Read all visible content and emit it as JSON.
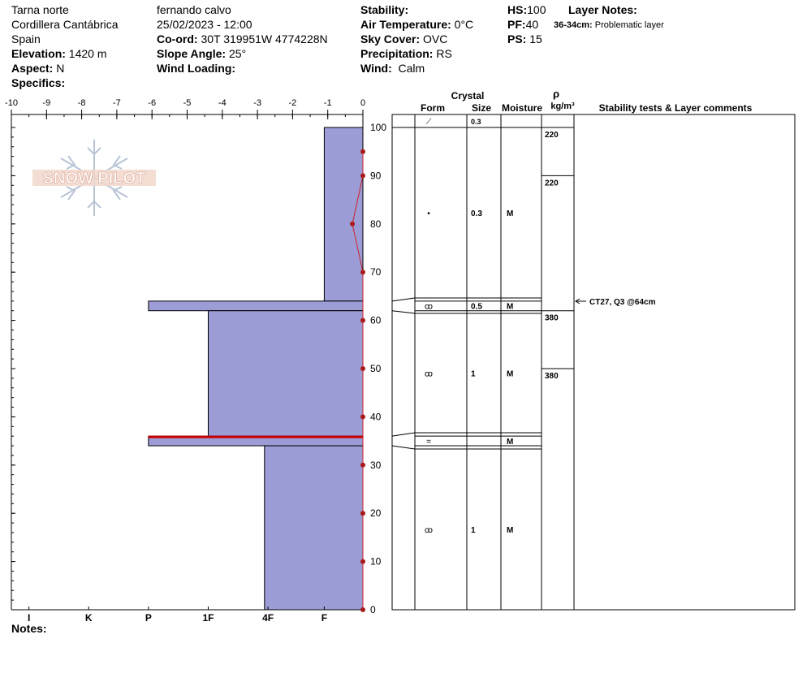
{
  "header": {
    "location": "Tarna norte",
    "range": "Cordillera Cantábrica",
    "country": "Spain",
    "elevation_label": "Elevation:",
    "elevation_value": "1420 m",
    "aspect_label": "Aspect:",
    "aspect_value": "N",
    "specifics_label": "Specifics:",
    "observer": "fernando calvo",
    "datetime": "25/02/2023 - 12:00",
    "coord_label": "Co-ord:",
    "coord_value": "30T 319951W 4774228N",
    "slope_label": "Slope Angle:",
    "slope_value": "25°",
    "wind_loading_label": "Wind Loading:",
    "stability_label": "Stability:",
    "air_temp_label": "Air Temperature:",
    "air_temp_value": "0°C",
    "sky_label": "Sky Cover:",
    "sky_value": "OVC",
    "precip_label": "Precipitation:",
    "precip_value": "RS",
    "wind_label": "Wind:",
    "wind_value": "Calm",
    "hs_label": "HS:",
    "hs_value": "100",
    "pf_label": "PF:",
    "pf_value": "40",
    "ps_label": "PS:",
    "ps_value": "15",
    "layer_notes_label": "Layer Notes:",
    "layer_note_range": "36-34cm:",
    "layer_note_text": "Problematic layer"
  },
  "notes_label": "Notes:",
  "logo_text": "SNOW PILOT",
  "columns": {
    "crystal": "Crystal",
    "form": "Form",
    "size": "Size",
    "moisture": "Moisture",
    "rho": "ρ",
    "density_unit": "kg/m³",
    "stability": "Stability tests & Layer comments"
  },
  "colors": {
    "hardness_fill": "#9c9cd6",
    "temp_line": "#cc2222",
    "temp_point": "#aa1a1a",
    "problem_line": "#cc0000"
  },
  "chart_data": {
    "type": "snow-profile",
    "temp_axis": {
      "ticks": [
        -10,
        -9,
        -8,
        -7,
        -6,
        -5,
        -4,
        -3,
        -2,
        -1,
        0
      ],
      "range": [
        -10,
        0
      ]
    },
    "height_axis": {
      "ticks": [
        0,
        10,
        20,
        30,
        40,
        50,
        60,
        70,
        80,
        90,
        100
      ],
      "range": [
        0,
        100
      ]
    },
    "hardness_axis": {
      "labels": [
        "I",
        "K",
        "P",
        "1F",
        "4F",
        "F"
      ],
      "label_temps": [
        -9.5,
        -7.8,
        -6.1,
        -4.4,
        -2.7,
        -1.1
      ]
    },
    "temperature_profile": [
      {
        "h": 0,
        "t": 0
      },
      {
        "h": 10,
        "t": 0
      },
      {
        "h": 20,
        "t": 0
      },
      {
        "h": 30,
        "t": 0
      },
      {
        "h": 40,
        "t": 0
      },
      {
        "h": 50,
        "t": 0
      },
      {
        "h": 60,
        "t": 0
      },
      {
        "h": 70,
        "t": 0
      },
      {
        "h": 80,
        "t": -0.3
      },
      {
        "h": 90,
        "t": 0
      },
      {
        "h": 95,
        "t": 0
      }
    ],
    "hardness_layers": [
      {
        "top": 100,
        "bottom": 64,
        "temp_extent": -1.1
      },
      {
        "top": 64,
        "bottom": 62,
        "temp_extent": -6.1
      },
      {
        "top": 62,
        "bottom": 36,
        "temp_extent": -4.4
      },
      {
        "top": 36,
        "bottom": 34,
        "temp_extent": -6.1
      },
      {
        "top": 34,
        "bottom": 0,
        "temp_extent": -2.8
      }
    ],
    "problem_layer": {
      "top": 36,
      "bottom": 35.5
    },
    "layer_table": [
      {
        "top": 100,
        "bottom": 64,
        "form_glyph": "•",
        "size": "0.3",
        "moisture": "M"
      },
      {
        "top": 64,
        "bottom": 62,
        "form_glyph": "ꝏ",
        "size": "0.5",
        "moisture": "M"
      },
      {
        "top": 62,
        "bottom": 36,
        "form_glyph": "ꝏ",
        "size": "1",
        "moisture": "M"
      },
      {
        "top": 36,
        "bottom": 34,
        "form_glyph": "=",
        "size": "",
        "moisture": "M"
      },
      {
        "top": 34,
        "bottom": 0,
        "form_glyph": "ꝏ",
        "size": "1",
        "moisture": "M"
      }
    ],
    "surface_row": {
      "form_glyph": "⟋",
      "size": "0.3"
    },
    "densities": [
      {
        "top": 100,
        "bottom": 90,
        "value": "220"
      },
      {
        "top": 90,
        "bottom": 62,
        "value": "220"
      },
      {
        "top": 62,
        "bottom": 50,
        "value": "380"
      },
      {
        "top": 50,
        "bottom": 0,
        "value": "380"
      }
    ],
    "stability_tests": [
      {
        "height": 64,
        "text": "CT27, Q3 @64cm"
      }
    ]
  }
}
